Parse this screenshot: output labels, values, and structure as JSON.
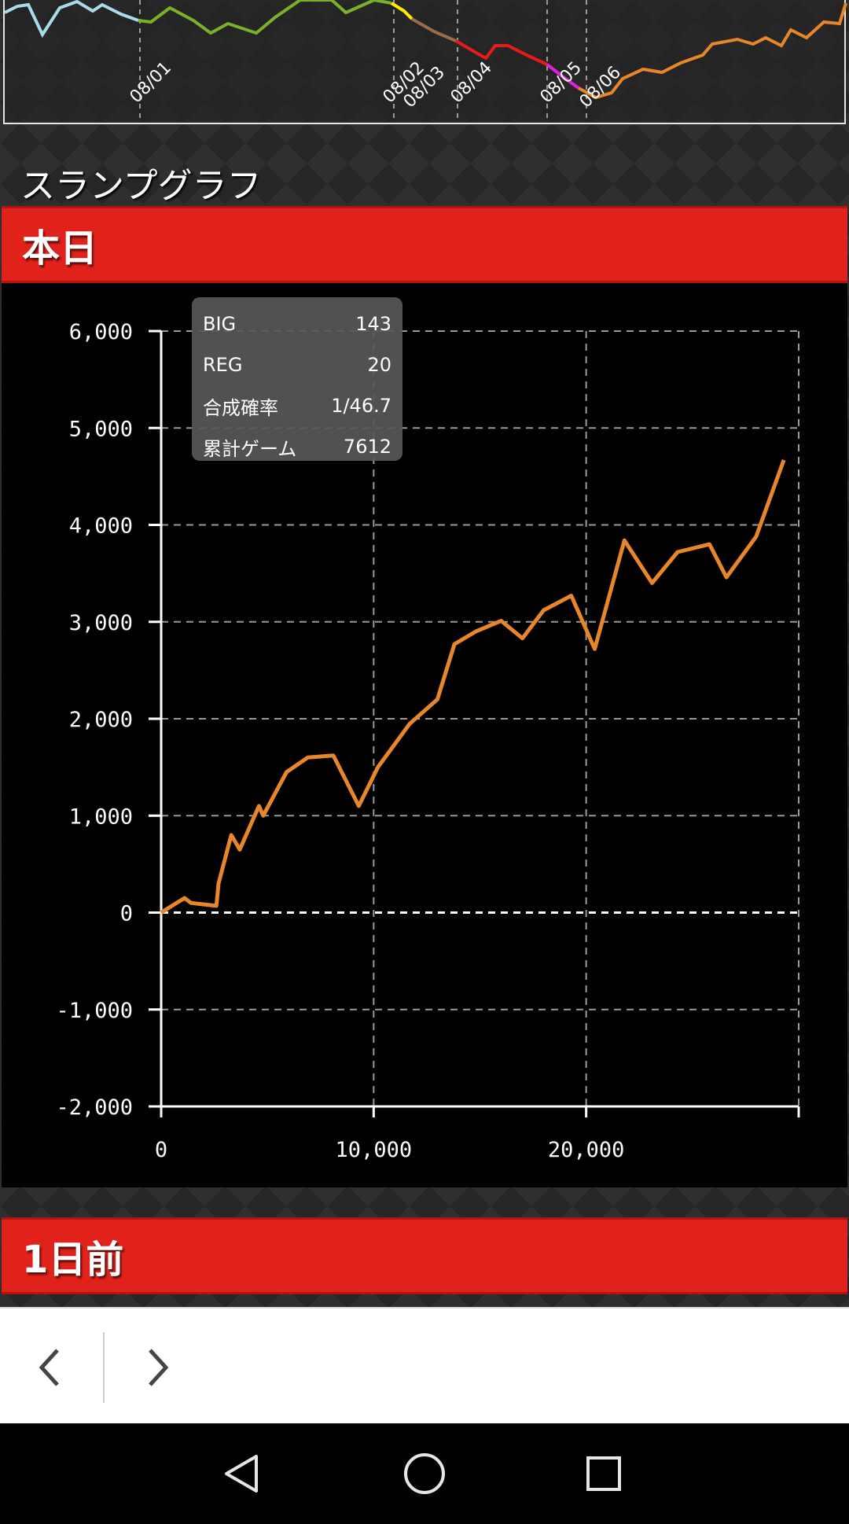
{
  "mini_graph": {
    "date_labels": [
      "08/01",
      "08/02",
      "08/03",
      "08/04",
      "08/05",
      "08/06"
    ]
  },
  "section_title": "スランプグラフ",
  "headers": {
    "today": "本日",
    "one_day_ago": "1日前"
  },
  "tooltip": {
    "rows": [
      {
        "label": "BIG",
        "value": "143"
      },
      {
        "label": "REG",
        "value": "20"
      },
      {
        "label": "合成確率",
        "value": "1/46.7"
      },
      {
        "label": "累計ゲーム",
        "value": "7612"
      }
    ]
  },
  "chart_data": {
    "type": "line",
    "title": "",
    "xlabel": "",
    "ylabel": "",
    "xlim": [
      0,
      30000
    ],
    "ylim": [
      -2000,
      6000
    ],
    "x_ticks": [
      0,
      10000,
      20000
    ],
    "x_tick_labels": [
      "0",
      "10,000",
      "20,000"
    ],
    "y_ticks": [
      6000,
      5000,
      4000,
      3000,
      2000,
      1000,
      0,
      -1000,
      -2000
    ],
    "y_tick_labels": [
      "6,000",
      "5,000",
      "4,000",
      "3,000",
      "2,000",
      "1,000",
      "0",
      "-1,000",
      "-2,000"
    ],
    "grid": true,
    "color": "#e8862a",
    "x": [
      0,
      1100,
      1400,
      2600,
      2700,
      3300,
      3700,
      4600,
      4800,
      5900,
      6900,
      8100,
      9300,
      10200,
      11700,
      13000,
      13800,
      14800,
      16000,
      17000,
      18000,
      19300,
      20400,
      21800,
      23100,
      24300,
      25800,
      26600,
      28000,
      29300
    ],
    "y": [
      0,
      150,
      100,
      70,
      300,
      800,
      650,
      1100,
      1000,
      1450,
      1600,
      1620,
      1100,
      1500,
      1950,
      2200,
      2770,
      2900,
      3010,
      2830,
      3120,
      3270,
      2720,
      3840,
      3400,
      3720,
      3800,
      3460,
      3880,
      4670
    ]
  },
  "nav": {
    "back_label": "‹",
    "forward_label": "›"
  }
}
